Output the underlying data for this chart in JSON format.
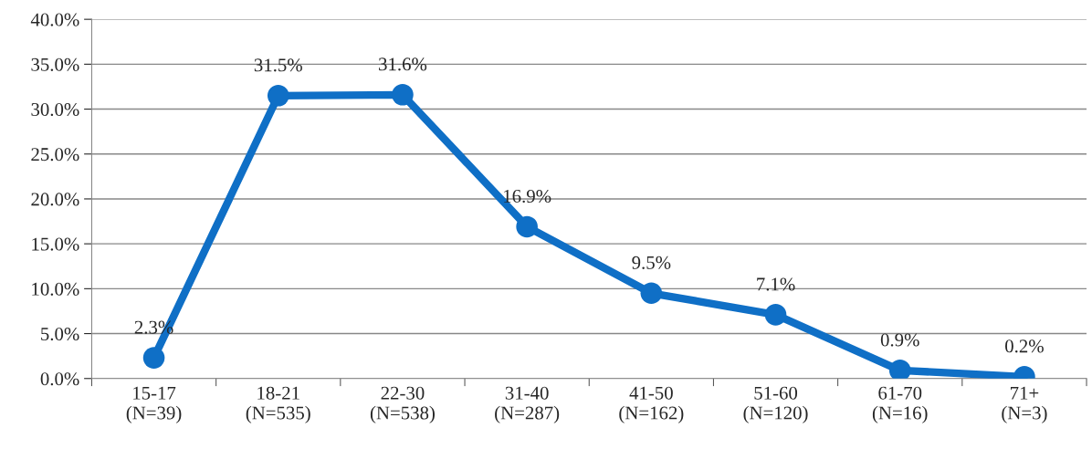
{
  "chart_data": {
    "type": "line",
    "categories": [
      "15-17\n(N=39)",
      "18-21\n(N=535)",
      "22-30\n(N=538)",
      "31-40\n(N=287)",
      "41-50\n(N=162)",
      "51-60\n(N=120)",
      "61-70\n(N=16)",
      "71+\n(N=3)"
    ],
    "series": [
      {
        "color": "#0f6fc6",
        "values": [
          2.3,
          31.5,
          31.6,
          16.9,
          9.5,
          7.1,
          0.9,
          0.2
        ],
        "value_labels": [
          "2.3%",
          "31.5%",
          "31.6%",
          "16.9%",
          "9.5%",
          "7.1%",
          "0.9%",
          "0.2%"
        ]
      }
    ],
    "ylim": [
      0,
      40
    ],
    "yticks": [
      {
        "value": 0,
        "label": "0.0%"
      },
      {
        "value": 5,
        "label": "5.0%"
      },
      {
        "value": 10,
        "label": "10.0%"
      },
      {
        "value": 15,
        "label": "15.0%"
      },
      {
        "value": 20,
        "label": "20.0%"
      },
      {
        "value": 25,
        "label": "25.0%"
      },
      {
        "value": 30,
        "label": "30.0%"
      },
      {
        "value": 35,
        "label": "35.0%"
      },
      {
        "value": 40,
        "label": "40.0%"
      }
    ],
    "grid": "y",
    "legend": false,
    "marker": "circle",
    "line_style": "solid"
  }
}
